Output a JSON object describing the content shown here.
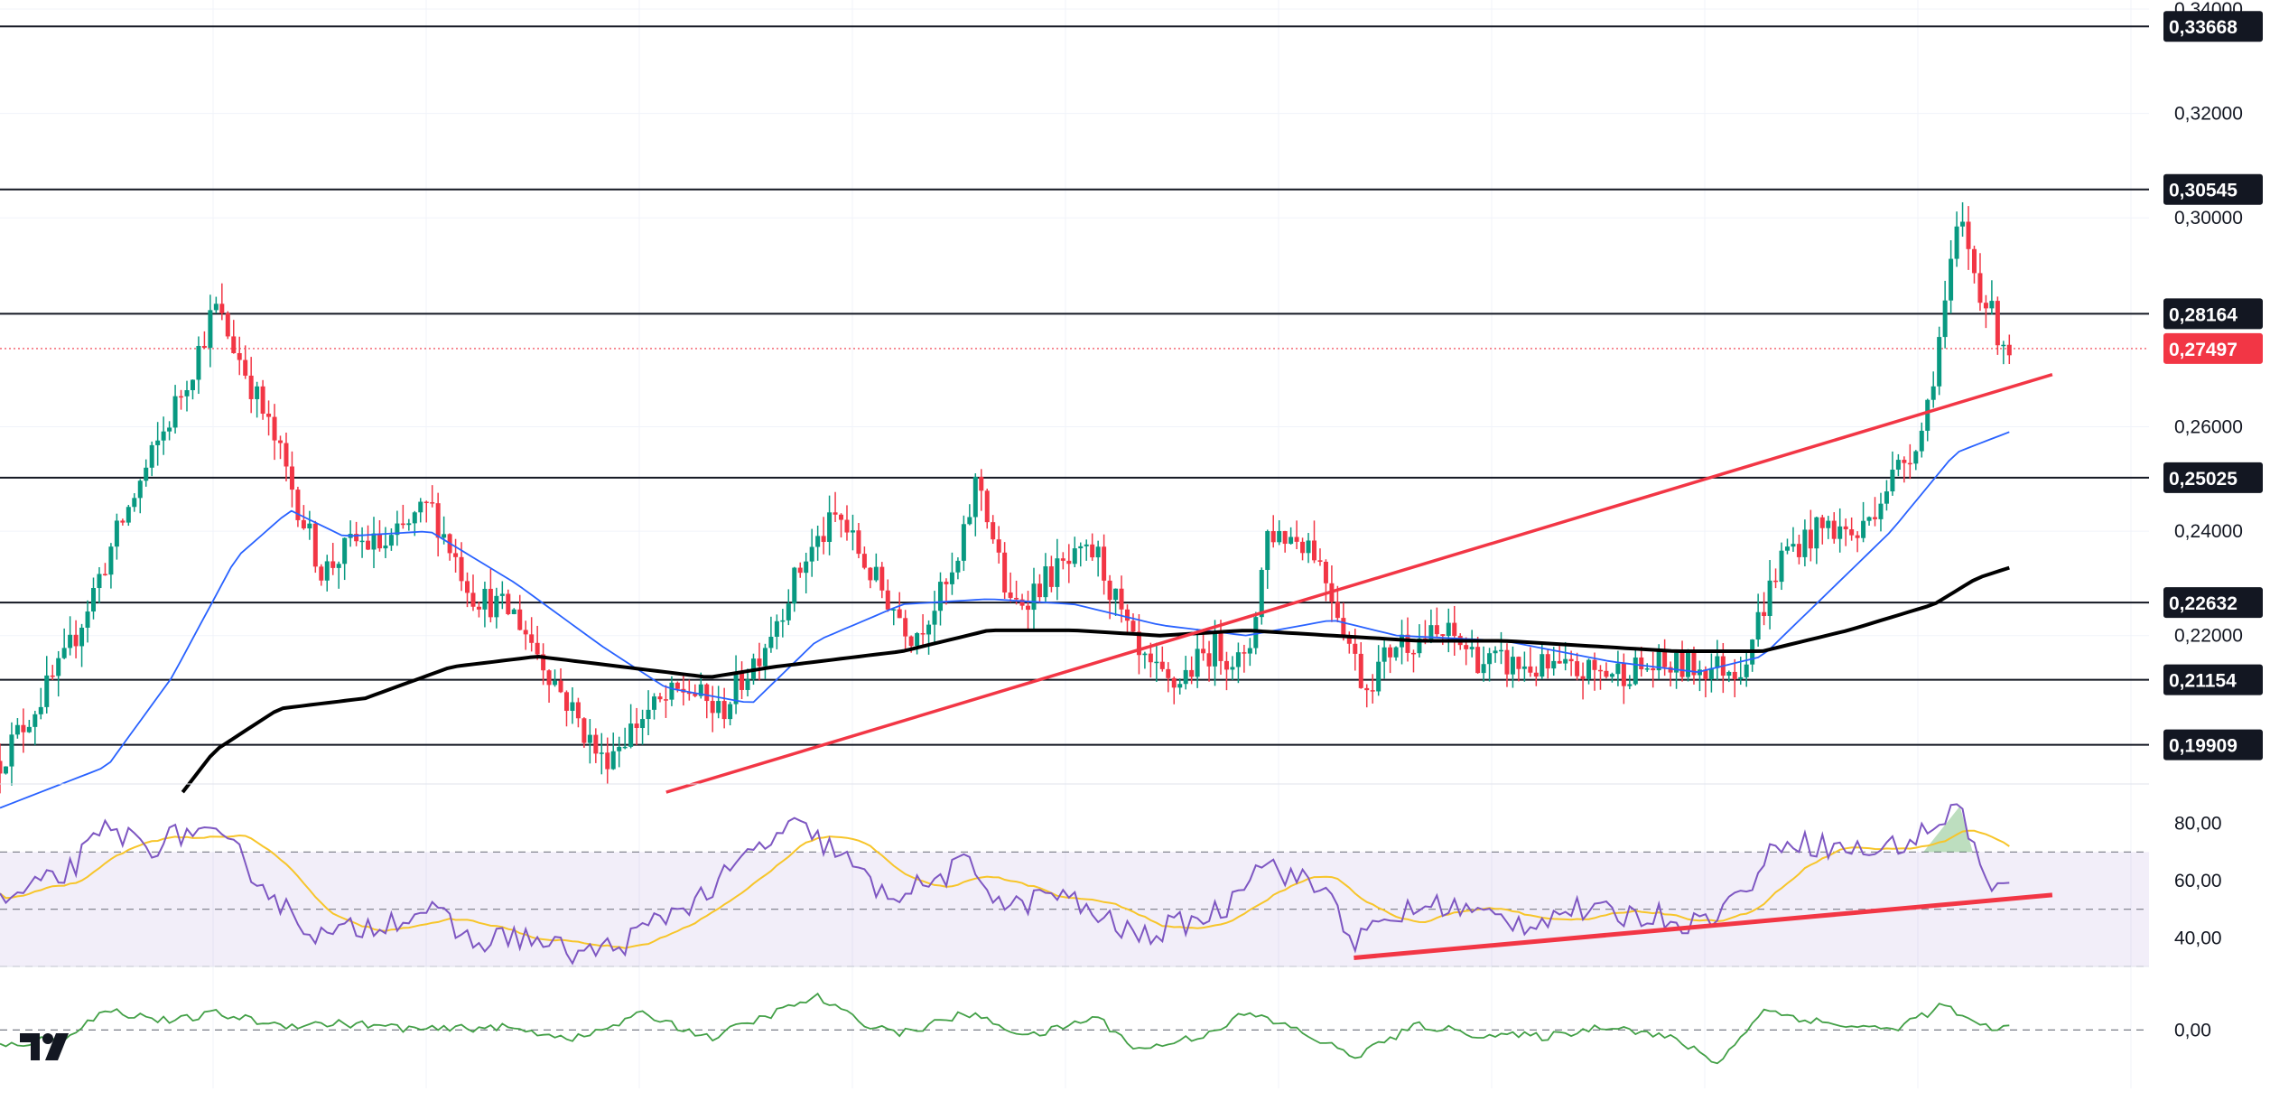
{
  "chart_data": {
    "type": "candlestick",
    "symbol_panel": {
      "y_range": [
        0.19,
        0.34
      ],
      "y_ticks": [
        "0,34000",
        "0,32000",
        "0,30000",
        "0,26000",
        "0,24000",
        "0,22000"
      ],
      "y_tick_values": [
        0.34,
        0.32,
        0.3,
        0.26,
        0.24,
        0.22
      ],
      "horizontal_levels": [
        {
          "label": "0,33668",
          "value": 0.33668
        },
        {
          "label": "0,30545",
          "value": 0.30545
        },
        {
          "label": "0,28164",
          "value": 0.28164
        },
        {
          "label": "0,25025",
          "value": 0.25025
        },
        {
          "label": "0,22632",
          "value": 0.22632
        },
        {
          "label": "0,21154",
          "value": 0.21154
        },
        {
          "label": "0,19909",
          "value": 0.19909
        }
      ],
      "last_price": {
        "label": "0,27497",
        "value": 0.27497
      },
      "trendline": {
        "from": [
          0.31,
          0.19
        ],
        "to": [
          0.955,
          0.27
        ],
        "color": "#f23645"
      },
      "price_keypoints": [
        [
          0.0,
          0.196
        ],
        [
          0.03,
          0.215
        ],
        [
          0.055,
          0.24
        ],
        [
          0.075,
          0.258
        ],
        [
          0.09,
          0.272
        ],
        [
          0.1,
          0.283
        ],
        [
          0.115,
          0.27
        ],
        [
          0.13,
          0.255
        ],
        [
          0.15,
          0.232
        ],
        [
          0.165,
          0.238
        ],
        [
          0.18,
          0.237
        ],
        [
          0.2,
          0.245
        ],
        [
          0.22,
          0.228
        ],
        [
          0.24,
          0.224
        ],
        [
          0.26,
          0.21
        ],
        [
          0.28,
          0.196
        ],
        [
          0.3,
          0.205
        ],
        [
          0.32,
          0.21
        ],
        [
          0.335,
          0.205
        ],
        [
          0.355,
          0.218
        ],
        [
          0.375,
          0.235
        ],
        [
          0.39,
          0.243
        ],
        [
          0.405,
          0.232
        ],
        [
          0.425,
          0.22
        ],
        [
          0.445,
          0.232
        ],
        [
          0.455,
          0.251
        ],
        [
          0.47,
          0.225
        ],
        [
          0.49,
          0.232
        ],
        [
          0.51,
          0.236
        ],
        [
          0.53,
          0.215
        ],
        [
          0.545,
          0.21
        ],
        [
          0.565,
          0.218
        ],
        [
          0.58,
          0.214
        ],
        [
          0.59,
          0.24
        ],
        [
          0.61,
          0.238
        ],
        [
          0.62,
          0.228
        ],
        [
          0.635,
          0.21
        ],
        [
          0.65,
          0.219
        ],
        [
          0.675,
          0.22
        ],
        [
          0.69,
          0.215
        ],
        [
          0.71,
          0.214
        ],
        [
          0.73,
          0.213
        ],
        [
          0.75,
          0.213
        ],
        [
          0.77,
          0.214
        ],
        [
          0.785,
          0.214
        ],
        [
          0.81,
          0.214
        ],
        [
          0.83,
          0.236
        ],
        [
          0.85,
          0.241
        ],
        [
          0.865,
          0.239
        ],
        [
          0.875,
          0.247
        ],
        [
          0.885,
          0.253
        ],
        [
          0.895,
          0.26
        ],
        [
          0.905,
          0.283
        ],
        [
          0.912,
          0.3
        ],
        [
          0.92,
          0.288
        ],
        [
          0.93,
          0.278
        ],
        [
          0.935,
          0.275
        ]
      ],
      "ma_50": {
        "color": "#2962ff",
        "points": [
          [
            0.0,
            0.187
          ],
          [
            0.05,
            0.195
          ],
          [
            0.08,
            0.212
          ],
          [
            0.11,
            0.235
          ],
          [
            0.135,
            0.244
          ],
          [
            0.16,
            0.239
          ],
          [
            0.2,
            0.24
          ],
          [
            0.24,
            0.23
          ],
          [
            0.28,
            0.218
          ],
          [
            0.31,
            0.21
          ],
          [
            0.35,
            0.207
          ],
          [
            0.38,
            0.219
          ],
          [
            0.42,
            0.226
          ],
          [
            0.46,
            0.227
          ],
          [
            0.5,
            0.226
          ],
          [
            0.54,
            0.222
          ],
          [
            0.58,
            0.22
          ],
          [
            0.62,
            0.223
          ],
          [
            0.65,
            0.22
          ],
          [
            0.7,
            0.219
          ],
          [
            0.75,
            0.215
          ],
          [
            0.79,
            0.213
          ],
          [
            0.82,
            0.216
          ],
          [
            0.85,
            0.228
          ],
          [
            0.88,
            0.24
          ],
          [
            0.91,
            0.255
          ],
          [
            0.935,
            0.259
          ]
        ]
      },
      "ma_200": {
        "color": "#000000",
        "points": [
          [
            0.085,
            0.19
          ],
          [
            0.1,
            0.198
          ],
          [
            0.13,
            0.206
          ],
          [
            0.17,
            0.208
          ],
          [
            0.21,
            0.214
          ],
          [
            0.25,
            0.216
          ],
          [
            0.29,
            0.214
          ],
          [
            0.33,
            0.212
          ],
          [
            0.36,
            0.214
          ],
          [
            0.42,
            0.217
          ],
          [
            0.46,
            0.221
          ],
          [
            0.5,
            0.221
          ],
          [
            0.54,
            0.22
          ],
          [
            0.58,
            0.221
          ],
          [
            0.62,
            0.22
          ],
          [
            0.66,
            0.219
          ],
          [
            0.7,
            0.219
          ],
          [
            0.74,
            0.218
          ],
          [
            0.78,
            0.217
          ],
          [
            0.82,
            0.217
          ],
          [
            0.86,
            0.221
          ],
          [
            0.9,
            0.226
          ],
          [
            0.92,
            0.231
          ],
          [
            0.935,
            0.233
          ]
        ]
      },
      "up_color": "#089981",
      "down_color": "#f23645"
    },
    "rsi_panel": {
      "y_range": [
        30,
        90
      ],
      "y_ticks": [
        "80,00",
        "60,00",
        "40,00"
      ],
      "y_tick_values": [
        80,
        60,
        40
      ],
      "band": [
        30,
        70
      ],
      "mid": 50,
      "rsi_keypoints": [
        [
          0.0,
          52
        ],
        [
          0.03,
          62
        ],
        [
          0.05,
          78
        ],
        [
          0.07,
          72
        ],
        [
          0.09,
          78
        ],
        [
          0.11,
          70
        ],
        [
          0.13,
          52
        ],
        [
          0.15,
          40
        ],
        [
          0.17,
          44
        ],
        [
          0.2,
          50
        ],
        [
          0.22,
          38
        ],
        [
          0.24,
          41
        ],
        [
          0.27,
          34
        ],
        [
          0.29,
          38
        ],
        [
          0.31,
          48
        ],
        [
          0.33,
          56
        ],
        [
          0.35,
          70
        ],
        [
          0.37,
          79
        ],
        [
          0.39,
          70
        ],
        [
          0.41,
          55
        ],
        [
          0.43,
          58
        ],
        [
          0.45,
          66
        ],
        [
          0.47,
          50
        ],
        [
          0.49,
          56
        ],
        [
          0.51,
          48
        ],
        [
          0.53,
          40
        ],
        [
          0.55,
          45
        ],
        [
          0.57,
          50
        ],
        [
          0.585,
          68
        ],
        [
          0.6,
          62
        ],
        [
          0.62,
          55
        ],
        [
          0.63,
          38
        ],
        [
          0.65,
          48
        ],
        [
          0.67,
          52
        ],
        [
          0.69,
          48
        ],
        [
          0.71,
          45
        ],
        [
          0.73,
          50
        ],
        [
          0.75,
          48
        ],
        [
          0.77,
          48
        ],
        [
          0.79,
          45
        ],
        [
          0.81,
          55
        ],
        [
          0.83,
          75
        ],
        [
          0.85,
          72
        ],
        [
          0.87,
          70
        ],
        [
          0.89,
          74
        ],
        [
          0.905,
          82
        ],
        [
          0.912,
          86
        ],
        [
          0.92,
          70
        ],
        [
          0.925,
          56
        ],
        [
          0.935,
          58
        ]
      ],
      "ma_color": "#f7c52a",
      "rsi_color": "#7e57c2",
      "trendline": {
        "from": [
          0.63,
          33
        ],
        "to": [
          0.955,
          55
        ],
        "color": "#f23645"
      }
    },
    "momentum_panel": {
      "y_ticks": [
        "0,00"
      ],
      "y_tick_values": [
        0
      ],
      "y_range": [
        -0.035,
        0.03
      ],
      "line_color": "#43a047",
      "keypoints": [
        [
          0.0,
          -0.01
        ],
        [
          0.03,
          -0.004
        ],
        [
          0.05,
          0.012
        ],
        [
          0.08,
          0.005
        ],
        [
          0.1,
          0.01
        ],
        [
          0.13,
          0.003
        ],
        [
          0.16,
          0.004
        ],
        [
          0.2,
          0.0
        ],
        [
          0.23,
          0.002
        ],
        [
          0.27,
          -0.005
        ],
        [
          0.3,
          0.01
        ],
        [
          0.33,
          -0.005
        ],
        [
          0.36,
          0.01
        ],
        [
          0.38,
          0.02
        ],
        [
          0.4,
          0.005
        ],
        [
          0.42,
          -0.002
        ],
        [
          0.45,
          0.01
        ],
        [
          0.48,
          -0.004
        ],
        [
          0.51,
          0.008
        ],
        [
          0.53,
          -0.012
        ],
        [
          0.56,
          -0.003
        ],
        [
          0.58,
          0.01
        ],
        [
          0.6,
          0.002
        ],
        [
          0.63,
          -0.016
        ],
        [
          0.66,
          0.003
        ],
        [
          0.69,
          -0.003
        ],
        [
          0.72,
          -0.004
        ],
        [
          0.75,
          0.003
        ],
        [
          0.78,
          -0.006
        ],
        [
          0.8,
          -0.02
        ],
        [
          0.82,
          0.012
        ],
        [
          0.85,
          0.004
        ],
        [
          0.88,
          0.0
        ],
        [
          0.905,
          0.015
        ],
        [
          0.92,
          0.002
        ],
        [
          0.935,
          0.001
        ]
      ]
    }
  }
}
